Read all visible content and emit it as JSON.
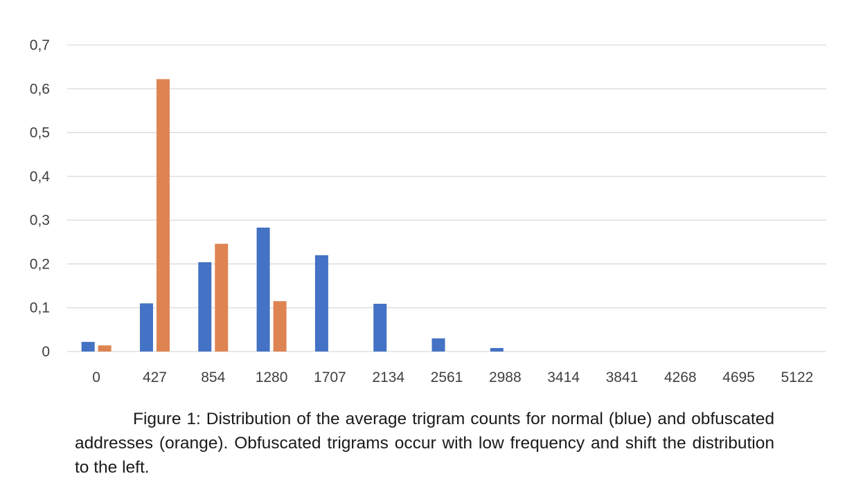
{
  "chart_data": {
    "type": "bar",
    "categories": [
      "0",
      "427",
      "854",
      "1280",
      "1707",
      "2134",
      "2561",
      "2988",
      "3414",
      "3841",
      "4268",
      "4695",
      "5122"
    ],
    "series": [
      {
        "values": [
          0.022,
          0.11,
          0.204,
          0.283,
          0.22,
          0.109,
          0.03,
          0.008,
          0,
          0,
          0,
          0,
          0
        ],
        "color": "#4472c4"
      },
      {
        "values": [
          0.014,
          0.622,
          0.246,
          0.115,
          0,
          0,
          0,
          0,
          0,
          0,
          0,
          0,
          0
        ],
        "color": "#dd8452"
      }
    ],
    "ylim": [
      0,
      0.7
    ],
    "yticks": [
      "0",
      "0,1",
      "0,2",
      "0,3",
      "0,4",
      "0,5",
      "0,6",
      "0,7"
    ],
    "grid": true
  },
  "caption": "Figure 1: Distribution of the average trigram counts for normal (blue) and obfuscated addresses (orange). Obfuscated trigrams occur with low frequency and shift the distribution to the left."
}
